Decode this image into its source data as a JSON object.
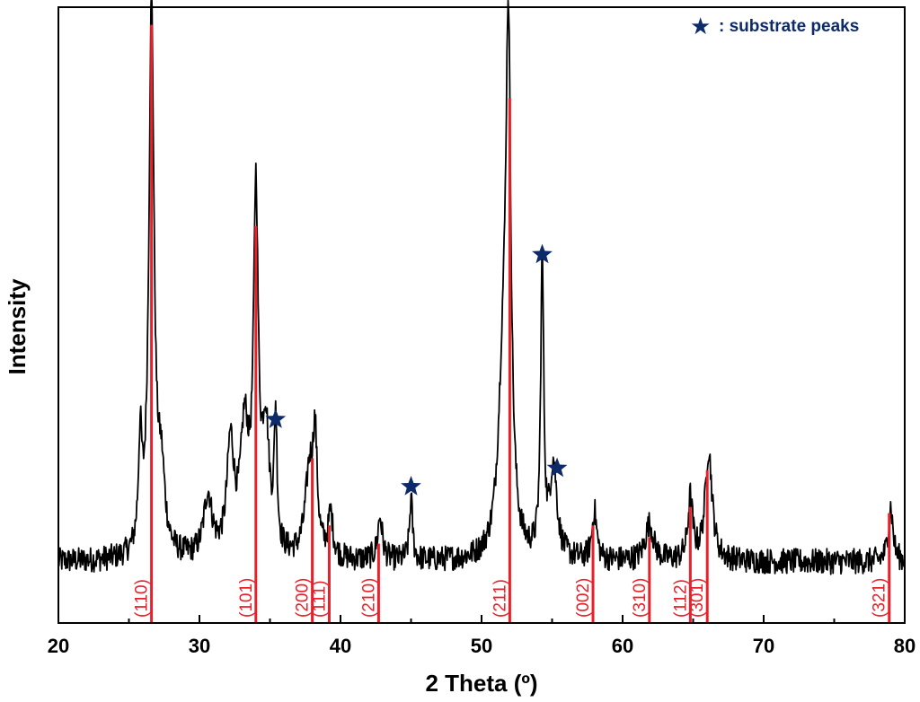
{
  "chart_data": {
    "type": "line",
    "title": "",
    "xlabel": "2 Theta (º)",
    "ylabel": "Intensity",
    "xlim": [
      20,
      80
    ],
    "ylim": [
      0,
      100
    ],
    "x_ticks": [
      "20",
      "30",
      "40",
      "50",
      "60",
      "70",
      "80"
    ],
    "grid": false,
    "legend": {
      "symbol": "★",
      "label": ": substrate peaks",
      "position": "top-right"
    },
    "colors": {
      "trace": "#000000",
      "reference": "#e8202a",
      "substrate": "#0d2a6b"
    },
    "baseline": 10,
    "pattern_peaks": [
      {
        "x": 25.8,
        "y": 27,
        "w": 0.15
      },
      {
        "x": 26.6,
        "y": 100,
        "w": 0.22
      },
      {
        "x": 27.3,
        "y": 22,
        "w": 0.3
      },
      {
        "x": 30.6,
        "y": 20,
        "w": 0.35
      },
      {
        "x": 32.2,
        "y": 28,
        "w": 0.3
      },
      {
        "x": 33.2,
        "y": 30,
        "w": 0.35
      },
      {
        "x": 34.0,
        "y": 67,
        "w": 0.2
      },
      {
        "x": 34.7,
        "y": 30,
        "w": 0.3
      },
      {
        "x": 35.4,
        "y": 31,
        "w": 0.12
      },
      {
        "x": 37.8,
        "y": 24,
        "w": 0.35
      },
      {
        "x": 38.2,
        "y": 27,
        "w": 0.18
      },
      {
        "x": 39.3,
        "y": 17,
        "w": 0.2
      },
      {
        "x": 42.8,
        "y": 17,
        "w": 0.2
      },
      {
        "x": 45.0,
        "y": 20,
        "w": 0.13
      },
      {
        "x": 51.5,
        "y": 35,
        "w": 0.4
      },
      {
        "x": 51.9,
        "y": 90,
        "w": 0.22
      },
      {
        "x": 54.3,
        "y": 58,
        "w": 0.13
      },
      {
        "x": 55.1,
        "y": 25,
        "w": 0.3
      },
      {
        "x": 58.0,
        "y": 18,
        "w": 0.2
      },
      {
        "x": 61.9,
        "y": 16,
        "w": 0.35
      },
      {
        "x": 64.8,
        "y": 20,
        "w": 0.2
      },
      {
        "x": 66.1,
        "y": 28,
        "w": 0.3
      },
      {
        "x": 79.0,
        "y": 19,
        "w": 0.2
      }
    ],
    "reference_lines": [
      {
        "x": 26.6,
        "y": 98,
        "hkl": "(110)"
      },
      {
        "x": 34.0,
        "y": 65,
        "hkl": "(101)"
      },
      {
        "x": 38.0,
        "y": 27,
        "hkl": "(200)"
      },
      {
        "x": 39.2,
        "y": 16,
        "hkl": "(111)"
      },
      {
        "x": 42.7,
        "y": 13,
        "hkl": "(210)"
      },
      {
        "x": 52.0,
        "y": 86,
        "hkl": "(211)"
      },
      {
        "x": 57.9,
        "y": 16,
        "hkl": "(002)"
      },
      {
        "x": 61.9,
        "y": 14,
        "hkl": "(310)"
      },
      {
        "x": 64.8,
        "y": 19,
        "hkl": "(112)"
      },
      {
        "x": 66.0,
        "y": 25,
        "hkl": "(301)"
      },
      {
        "x": 78.9,
        "y": 18,
        "hkl": "(321)"
      }
    ],
    "substrate_peaks": [
      {
        "x": 35.4,
        "y": 31
      },
      {
        "x": 45.0,
        "y": 20
      },
      {
        "x": 54.3,
        "y": 58
      },
      {
        "x": 55.1,
        "y": 23
      }
    ]
  }
}
